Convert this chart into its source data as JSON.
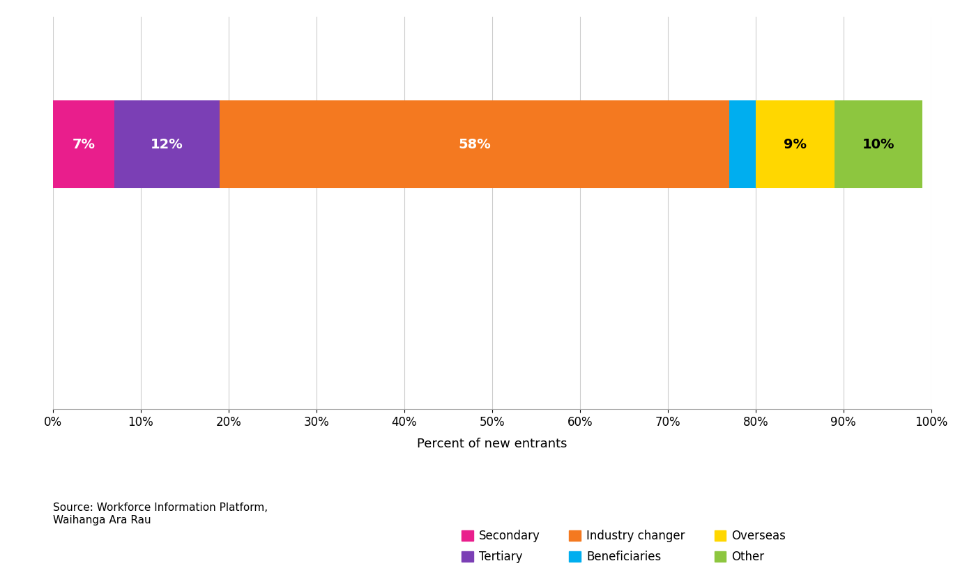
{
  "categories": [
    "Secondary",
    "Tertiary",
    "Industry changer",
    "Beneficiaries",
    "Overseas",
    "Other"
  ],
  "values": [
    7,
    12,
    58,
    3,
    9,
    10
  ],
  "colors": [
    "#E91E8C",
    "#7B3FB5",
    "#F47920",
    "#00AEEF",
    "#FFD700",
    "#8DC63F"
  ],
  "label_colors": [
    "white",
    "white",
    "white",
    "white",
    "black",
    "black"
  ],
  "xlabel": "Percent of new entrants",
  "xlim": [
    0,
    100
  ],
  "xtick_labels": [
    "0%",
    "10%",
    "20%",
    "30%",
    "40%",
    "50%",
    "60%",
    "70%",
    "80%",
    "90%",
    "100%"
  ],
  "xtick_values": [
    0,
    10,
    20,
    30,
    40,
    50,
    60,
    70,
    80,
    90,
    100
  ],
  "source_text": "Source: Workforce Information Platform,\nWaihanga Ara Rau",
  "legend_items_row1": [
    {
      "label": "Secondary",
      "color": "#E91E8C"
    },
    {
      "label": "Tertiary",
      "color": "#7B3FB5"
    },
    {
      "label": "Industry changer",
      "color": "#F47920"
    }
  ],
  "legend_items_row2": [
    {
      "label": "Beneficiaries",
      "color": "#00AEEF"
    },
    {
      "label": "Overseas",
      "color": "#FFD700"
    },
    {
      "label": "Other",
      "color": "#8DC63F"
    }
  ],
  "bar_height": 0.45,
  "ylim": [
    0,
    2.0
  ],
  "bar_y": 1.35,
  "background_color": "#FFFFFF",
  "grid_color": "#CCCCCC",
  "fontsize_tick": 12,
  "fontsize_label": 13,
  "fontsize_bar_text": 14,
  "fontsize_legend": 12,
  "fontsize_source": 11
}
